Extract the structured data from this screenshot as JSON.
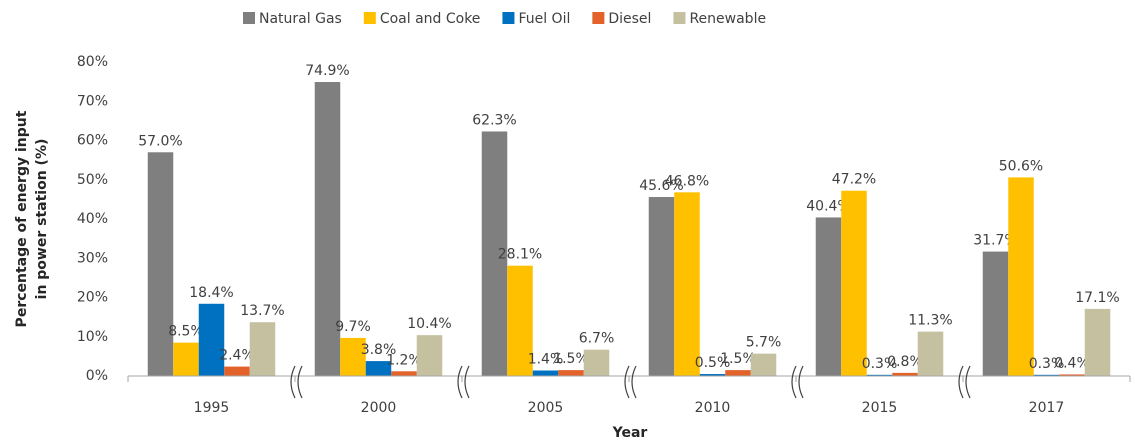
{
  "chart_data": {
    "type": "bar",
    "categories": [
      "1995",
      "2000",
      "2005",
      "2010",
      "2015",
      "2017"
    ],
    "series": [
      {
        "name": "Natural Gas",
        "color": "#7f7f7f",
        "label_color": "#262626",
        "values": [
          57.0,
          74.9,
          62.3,
          45.6,
          40.4,
          31.7
        ],
        "value_labels": [
          "57.0%",
          "74.9%",
          "62.3%",
          "45.6%",
          "40.4%",
          "31.7%"
        ]
      },
      {
        "name": "Coal and Coke",
        "color": "#ffc000",
        "label_color": "#e6ad00",
        "values": [
          8.5,
          9.7,
          28.1,
          46.8,
          47.2,
          50.6
        ],
        "value_labels": [
          "8.5%",
          "9.7%",
          "28.1%",
          "46.8%",
          "47.2%",
          "50.6%"
        ]
      },
      {
        "name": "Fuel Oil",
        "color": "#0070c0",
        "label_color": "#0070c0",
        "values": [
          18.4,
          3.8,
          1.4,
          0.5,
          0.3,
          0.3
        ],
        "value_labels": [
          "18.4%",
          "3.8%",
          "1.4%",
          "0.5%",
          "0.3%",
          "0.3%"
        ]
      },
      {
        "name": "Diesel",
        "color": "#e2622a",
        "label_color": "#e2622a",
        "values": [
          2.4,
          1.2,
          1.5,
          1.5,
          0.8,
          0.4
        ],
        "value_labels": [
          "2.4%",
          "1.2%",
          "1.5%",
          "1.5%",
          "0.8%",
          "0.4%"
        ]
      },
      {
        "name": "Renewable",
        "color": "#c4c0a0",
        "label_color": "#a8a488",
        "values": [
          13.7,
          10.4,
          6.7,
          5.7,
          11.3,
          17.1
        ],
        "value_labels": [
          "13.7%",
          "10.4%",
          "6.7%",
          "5.7%",
          "11.3%",
          "17.1%"
        ]
      }
    ],
    "xlabel": "Year",
    "ylabel": [
      "Percentage of energy input",
      "in power station (%)"
    ],
    "ylim": [
      0,
      80
    ],
    "yticks": [
      {
        "value": 0,
        "label": "0%"
      },
      {
        "value": 10,
        "label": "10%"
      },
      {
        "value": 20,
        "label": "20%"
      },
      {
        "value": 30,
        "label": "30%"
      },
      {
        "value": 40,
        "label": "40%"
      },
      {
        "value": 50,
        "label": "50%"
      },
      {
        "value": 60,
        "label": "60%"
      },
      {
        "value": 70,
        "label": "70%"
      },
      {
        "value": 80,
        "label": "80%"
      }
    ],
    "grid": false,
    "legend": "top"
  }
}
